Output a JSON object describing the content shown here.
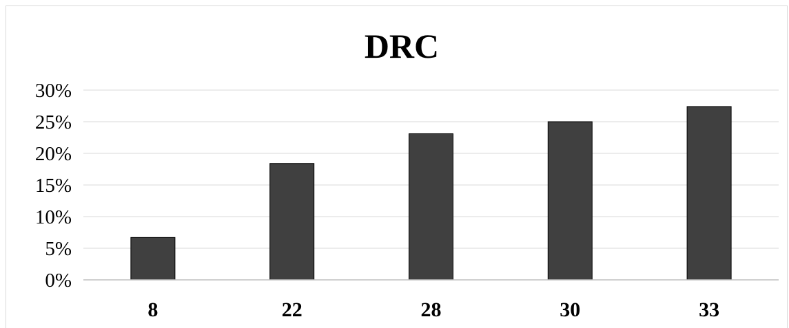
{
  "chart_data": {
    "type": "bar",
    "title": "DRC",
    "xlabel": "",
    "ylabel": "",
    "categories": [
      "8",
      "22",
      "28",
      "30",
      "33"
    ],
    "values": [
      0.067,
      0.184,
      0.231,
      0.25,
      0.274
    ],
    "ylim": [
      0,
      0.3
    ],
    "yticks": [
      0,
      0.05,
      0.1,
      0.15,
      0.2,
      0.25,
      0.3
    ],
    "ytick_labels": [
      "0%",
      "5%",
      "10%",
      "15%",
      "20%",
      "25%",
      "30%"
    ],
    "grid": true,
    "legend": "none",
    "bar_color": "#404040",
    "bar_edge_color": "#000000",
    "grid_color": "#e6e6e6",
    "axis_color": "#bfbfbf"
  }
}
